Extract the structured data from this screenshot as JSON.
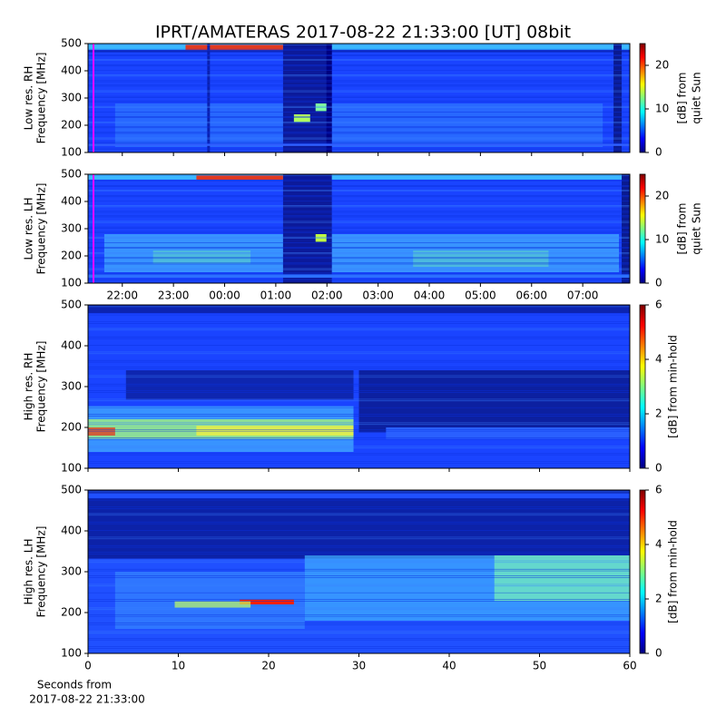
{
  "title": "IPRT/AMATERAS 2017-08-22 21:33:00 [UT]   08bit",
  "chart_data": [
    {
      "type": "heatmap",
      "ylabel": [
        "Low res. RH",
        "Frequency [MHz]"
      ],
      "ylim": [
        100,
        500
      ],
      "yticks": [
        100,
        200,
        300,
        400,
        500
      ],
      "xlim": [
        21.33,
        31.92
      ],
      "xticks": [
        {
          "value": 22,
          "label": "22:00"
        },
        {
          "value": 23,
          "label": "23:00"
        },
        {
          "value": 24,
          "label": "00:00"
        },
        {
          "value": 25,
          "label": "01:00"
        },
        {
          "value": 26,
          "label": "02:00"
        },
        {
          "value": 27,
          "label": "03:00"
        },
        {
          "value": 28,
          "label": "04:00"
        },
        {
          "value": 29,
          "label": "05:00"
        },
        {
          "value": 30,
          "label": "06:00"
        },
        {
          "value": 31,
          "label": "07:00"
        }
      ],
      "show_xticklabels": false,
      "colorbar": {
        "label": [
          "[dB] from",
          "quiet Sun"
        ],
        "lim": [
          0,
          25
        ],
        "ticks": [
          0,
          10,
          20
        ]
      }
    },
    {
      "type": "heatmap",
      "ylabel": [
        "Low res. LH",
        "Frequency [MHz]"
      ],
      "ylim": [
        100,
        500
      ],
      "yticks": [
        100,
        200,
        300,
        400,
        500
      ],
      "xlim": [
        21.33,
        31.92
      ],
      "xticks": [
        {
          "value": 22,
          "label": "22:00"
        },
        {
          "value": 23,
          "label": "23:00"
        },
        {
          "value": 24,
          "label": "00:00"
        },
        {
          "value": 25,
          "label": "01:00"
        },
        {
          "value": 26,
          "label": "02:00"
        },
        {
          "value": 27,
          "label": "03:00"
        },
        {
          "value": 28,
          "label": "04:00"
        },
        {
          "value": 29,
          "label": "05:00"
        },
        {
          "value": 30,
          "label": "06:00"
        },
        {
          "value": 31,
          "label": "07:00"
        }
      ],
      "show_xticklabels": true,
      "colorbar": {
        "label": [
          "[dB] from",
          "quiet Sun"
        ],
        "lim": [
          0,
          25
        ],
        "ticks": [
          0,
          10,
          20
        ]
      }
    },
    {
      "type": "heatmap",
      "ylabel": [
        "High res. RH",
        "Frequency [MHz]"
      ],
      "ylim": [
        100,
        500
      ],
      "yticks": [
        100,
        200,
        300,
        400,
        500
      ],
      "xlim": [
        0,
        60
      ],
      "xticks": [
        0,
        10,
        20,
        30,
        40,
        50,
        60
      ],
      "show_xticklabels": false,
      "colorbar": {
        "label": [
          "[dB] from min-hold"
        ],
        "lim": [
          0,
          6
        ],
        "ticks": [
          0,
          2,
          4,
          6
        ]
      }
    },
    {
      "type": "heatmap",
      "ylabel": [
        "High res. LH",
        "Frequency [MHz]"
      ],
      "ylim": [
        100,
        500
      ],
      "yticks": [
        100,
        200,
        300,
        400,
        500
      ],
      "xlim": [
        0,
        60
      ],
      "xticks": [
        0,
        10,
        20,
        30,
        40,
        50,
        60
      ],
      "show_xticklabels": true,
      "xlabel": [
        "Seconds from",
        "2017-08-22 21:33:00"
      ],
      "colorbar": {
        "label": [
          "[dB] from min-hold"
        ],
        "lim": [
          0,
          6
        ],
        "ticks": [
          0,
          2,
          4,
          6
        ]
      }
    }
  ]
}
